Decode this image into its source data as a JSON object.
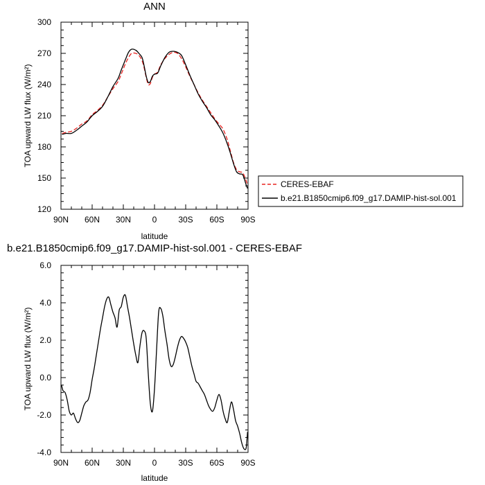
{
  "chart_data": [
    {
      "type": "line",
      "title": "ANN",
      "xlabel": "latitude",
      "ylabel": "TOA upward LW flux (W/m²)",
      "xlim": [
        90,
        -90
      ],
      "ylim": [
        120,
        300
      ],
      "xticks": [
        {
          "value": 90,
          "label": "90N"
        },
        {
          "value": 60,
          "label": "60N"
        },
        {
          "value": 30,
          "label": "30N"
        },
        {
          "value": 0,
          "label": "0"
        },
        {
          "value": -30,
          "label": "30S"
        },
        {
          "value": -60,
          "label": "60S"
        },
        {
          "value": -90,
          "label": "90S"
        }
      ],
      "yticks": [
        {
          "value": 120,
          "label": "120"
        },
        {
          "value": 150,
          "label": "150"
        },
        {
          "value": 180,
          "label": "180"
        },
        {
          "value": 210,
          "label": "210"
        },
        {
          "value": 240,
          "label": "240"
        },
        {
          "value": 270,
          "label": "270"
        },
        {
          "value": 300,
          "label": "300"
        }
      ],
      "legend": "right",
      "series": [
        {
          "name": "CERES-EBAF",
          "color": "#e8221f",
          "dash": "dashed",
          "x": [
            89,
            85,
            80,
            75,
            70,
            65,
            60,
            55,
            50,
            45,
            40,
            35,
            32,
            28,
            25,
            22,
            18,
            15,
            12,
            10,
            8,
            6,
            4,
            2,
            0,
            -3,
            -6,
            -10,
            -14,
            -18,
            -22,
            -26,
            -30,
            -34,
            -38,
            -42,
            -46,
            -50,
            -54,
            -58,
            -62,
            -66,
            -70,
            -73,
            -76,
            -79,
            -82,
            -85,
            -88,
            -89.5
          ],
          "y": [
            193,
            194,
            195,
            198,
            202,
            205,
            211,
            215,
            220,
            228,
            236,
            243,
            250,
            260,
            266,
            270,
            270,
            268,
            263,
            256,
            247,
            240,
            241,
            247,
            250,
            252,
            259,
            265,
            269,
            271,
            270,
            265,
            257,
            248,
            240,
            232,
            225,
            219,
            213,
            207,
            202,
            197,
            187,
            176,
            165,
            158,
            156,
            155,
            148,
            143
          ]
        },
        {
          "name": "b.e21.B1850cmip6.f09_g17.DAMIP-hist-sol.001",
          "color": "#000000",
          "dash": "solid",
          "x": [
            89,
            85,
            80,
            75,
            70,
            65,
            60,
            55,
            50,
            45,
            40,
            35,
            32,
            28,
            25,
            22,
            18,
            15,
            12,
            10,
            8,
            6,
            4,
            2,
            0,
            -3,
            -6,
            -10,
            -14,
            -18,
            -22,
            -26,
            -30,
            -34,
            -38,
            -42,
            -46,
            -50,
            -54,
            -58,
            -62,
            -66,
            -70,
            -73,
            -76,
            -79,
            -82,
            -85,
            -88,
            -89.5
          ],
          "y": [
            192,
            193,
            193,
            196,
            200,
            204,
            210,
            214,
            219,
            228,
            238,
            246,
            254,
            264,
            271,
            274,
            273,
            270,
            266,
            258,
            248,
            242,
            243,
            248,
            250,
            251,
            258,
            266,
            271,
            272,
            271,
            268,
            259,
            249,
            240,
            231,
            224,
            218,
            211,
            206,
            200,
            193,
            183,
            174,
            164,
            156,
            154,
            153,
            144,
            140
          ]
        }
      ]
    },
    {
      "type": "line",
      "title": "b.e21.B1850cmip6.f09_g17.DAMIP-hist-sol.001 - CERES-EBAF",
      "xlabel": "latitude",
      "ylabel": "TOA upward LW flux (W/m²)",
      "xlim": [
        90,
        -90
      ],
      "ylim": [
        -4.0,
        6.0
      ],
      "xticks": [
        {
          "value": 90,
          "label": "90N"
        },
        {
          "value": 60,
          "label": "60N"
        },
        {
          "value": 30,
          "label": "30N"
        },
        {
          "value": 0,
          "label": "0"
        },
        {
          "value": -30,
          "label": "30S"
        },
        {
          "value": -60,
          "label": "60S"
        },
        {
          "value": -90,
          "label": "90S"
        }
      ],
      "yticks": [
        {
          "value": -4.0,
          "label": "-4.0"
        },
        {
          "value": -2.0,
          "label": "-2.0"
        },
        {
          "value": 0.0,
          "label": "0.0"
        },
        {
          "value": 2.0,
          "label": "2.0"
        },
        {
          "value": 4.0,
          "label": "4.0"
        },
        {
          "value": 6.0,
          "label": "6.0"
        }
      ],
      "series": [
        {
          "color": "#000000",
          "dash": "solid",
          "x": [
            89.5,
            88,
            86,
            84,
            82,
            80,
            78,
            76,
            74,
            72,
            70,
            68,
            66,
            64,
            62,
            60,
            58,
            56,
            54,
            52,
            50,
            48,
            46,
            44,
            42,
            40,
            38,
            36,
            34,
            32,
            30,
            28,
            26,
            24,
            22,
            20,
            18,
            16,
            14,
            12,
            10,
            8,
            6,
            4,
            2,
            0,
            -2,
            -4,
            -6,
            -8,
            -10,
            -12,
            -14,
            -16,
            -18,
            -20,
            -22,
            -24,
            -26,
            -28,
            -30,
            -32,
            -34,
            -36,
            -38,
            -40,
            -42,
            -44,
            -46,
            -48,
            -50,
            -52,
            -54,
            -56,
            -58,
            -60,
            -62,
            -64,
            -66,
            -68,
            -70,
            -72,
            -74,
            -76,
            -78,
            -80,
            -82,
            -84,
            -86,
            -88,
            -89,
            -89.5
          ],
          "y": [
            -0.4,
            -0.7,
            -0.8,
            -1.2,
            -1.8,
            -2.0,
            -1.9,
            -2.2,
            -2.4,
            -2.3,
            -1.9,
            -1.5,
            -1.3,
            -1.2,
            -0.8,
            -0.1,
            0.5,
            1.2,
            1.9,
            2.6,
            3.2,
            3.8,
            4.2,
            4.3,
            3.9,
            3.5,
            3.2,
            2.7,
            3.6,
            3.8,
            4.3,
            4.4,
            3.8,
            3.2,
            2.5,
            1.8,
            1.2,
            0.8,
            1.7,
            2.4,
            2.5,
            2.1,
            0.2,
            -1.4,
            -1.8,
            -0.6,
            1.5,
            3.5,
            3.7,
            3.3,
            2.5,
            1.8,
            1.0,
            0.6,
            0.7,
            1.1,
            1.6,
            2.0,
            2.2,
            2.1,
            1.9,
            1.6,
            1.1,
            0.6,
            0.2,
            -0.2,
            -0.3,
            -0.5,
            -0.7,
            -0.9,
            -1.2,
            -1.5,
            -1.7,
            -1.8,
            -1.6,
            -1.2,
            -0.9,
            -1.2,
            -1.8,
            -2.2,
            -2.4,
            -1.8,
            -1.3,
            -1.7,
            -2.3,
            -2.6,
            -3.0,
            -3.5,
            -3.8,
            -3.8,
            -3.3,
            -2.9
          ]
        }
      ]
    }
  ]
}
